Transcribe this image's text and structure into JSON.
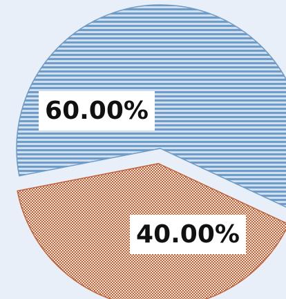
{
  "chart_data": {
    "type": "pie",
    "title": "",
    "categories": [
      "",
      ""
    ],
    "values": [
      60.0,
      40.0
    ],
    "data_labels": [
      "60.00%",
      "40.00%"
    ],
    "colors": [
      "#6f9cc6",
      "#c0623a"
    ],
    "fill_colors": [
      "#cfdff0",
      "#f3d4c4"
    ],
    "patterns": [
      "horizontal-stripes",
      "dots"
    ],
    "exploded_slice": 1,
    "legend": "none"
  }
}
